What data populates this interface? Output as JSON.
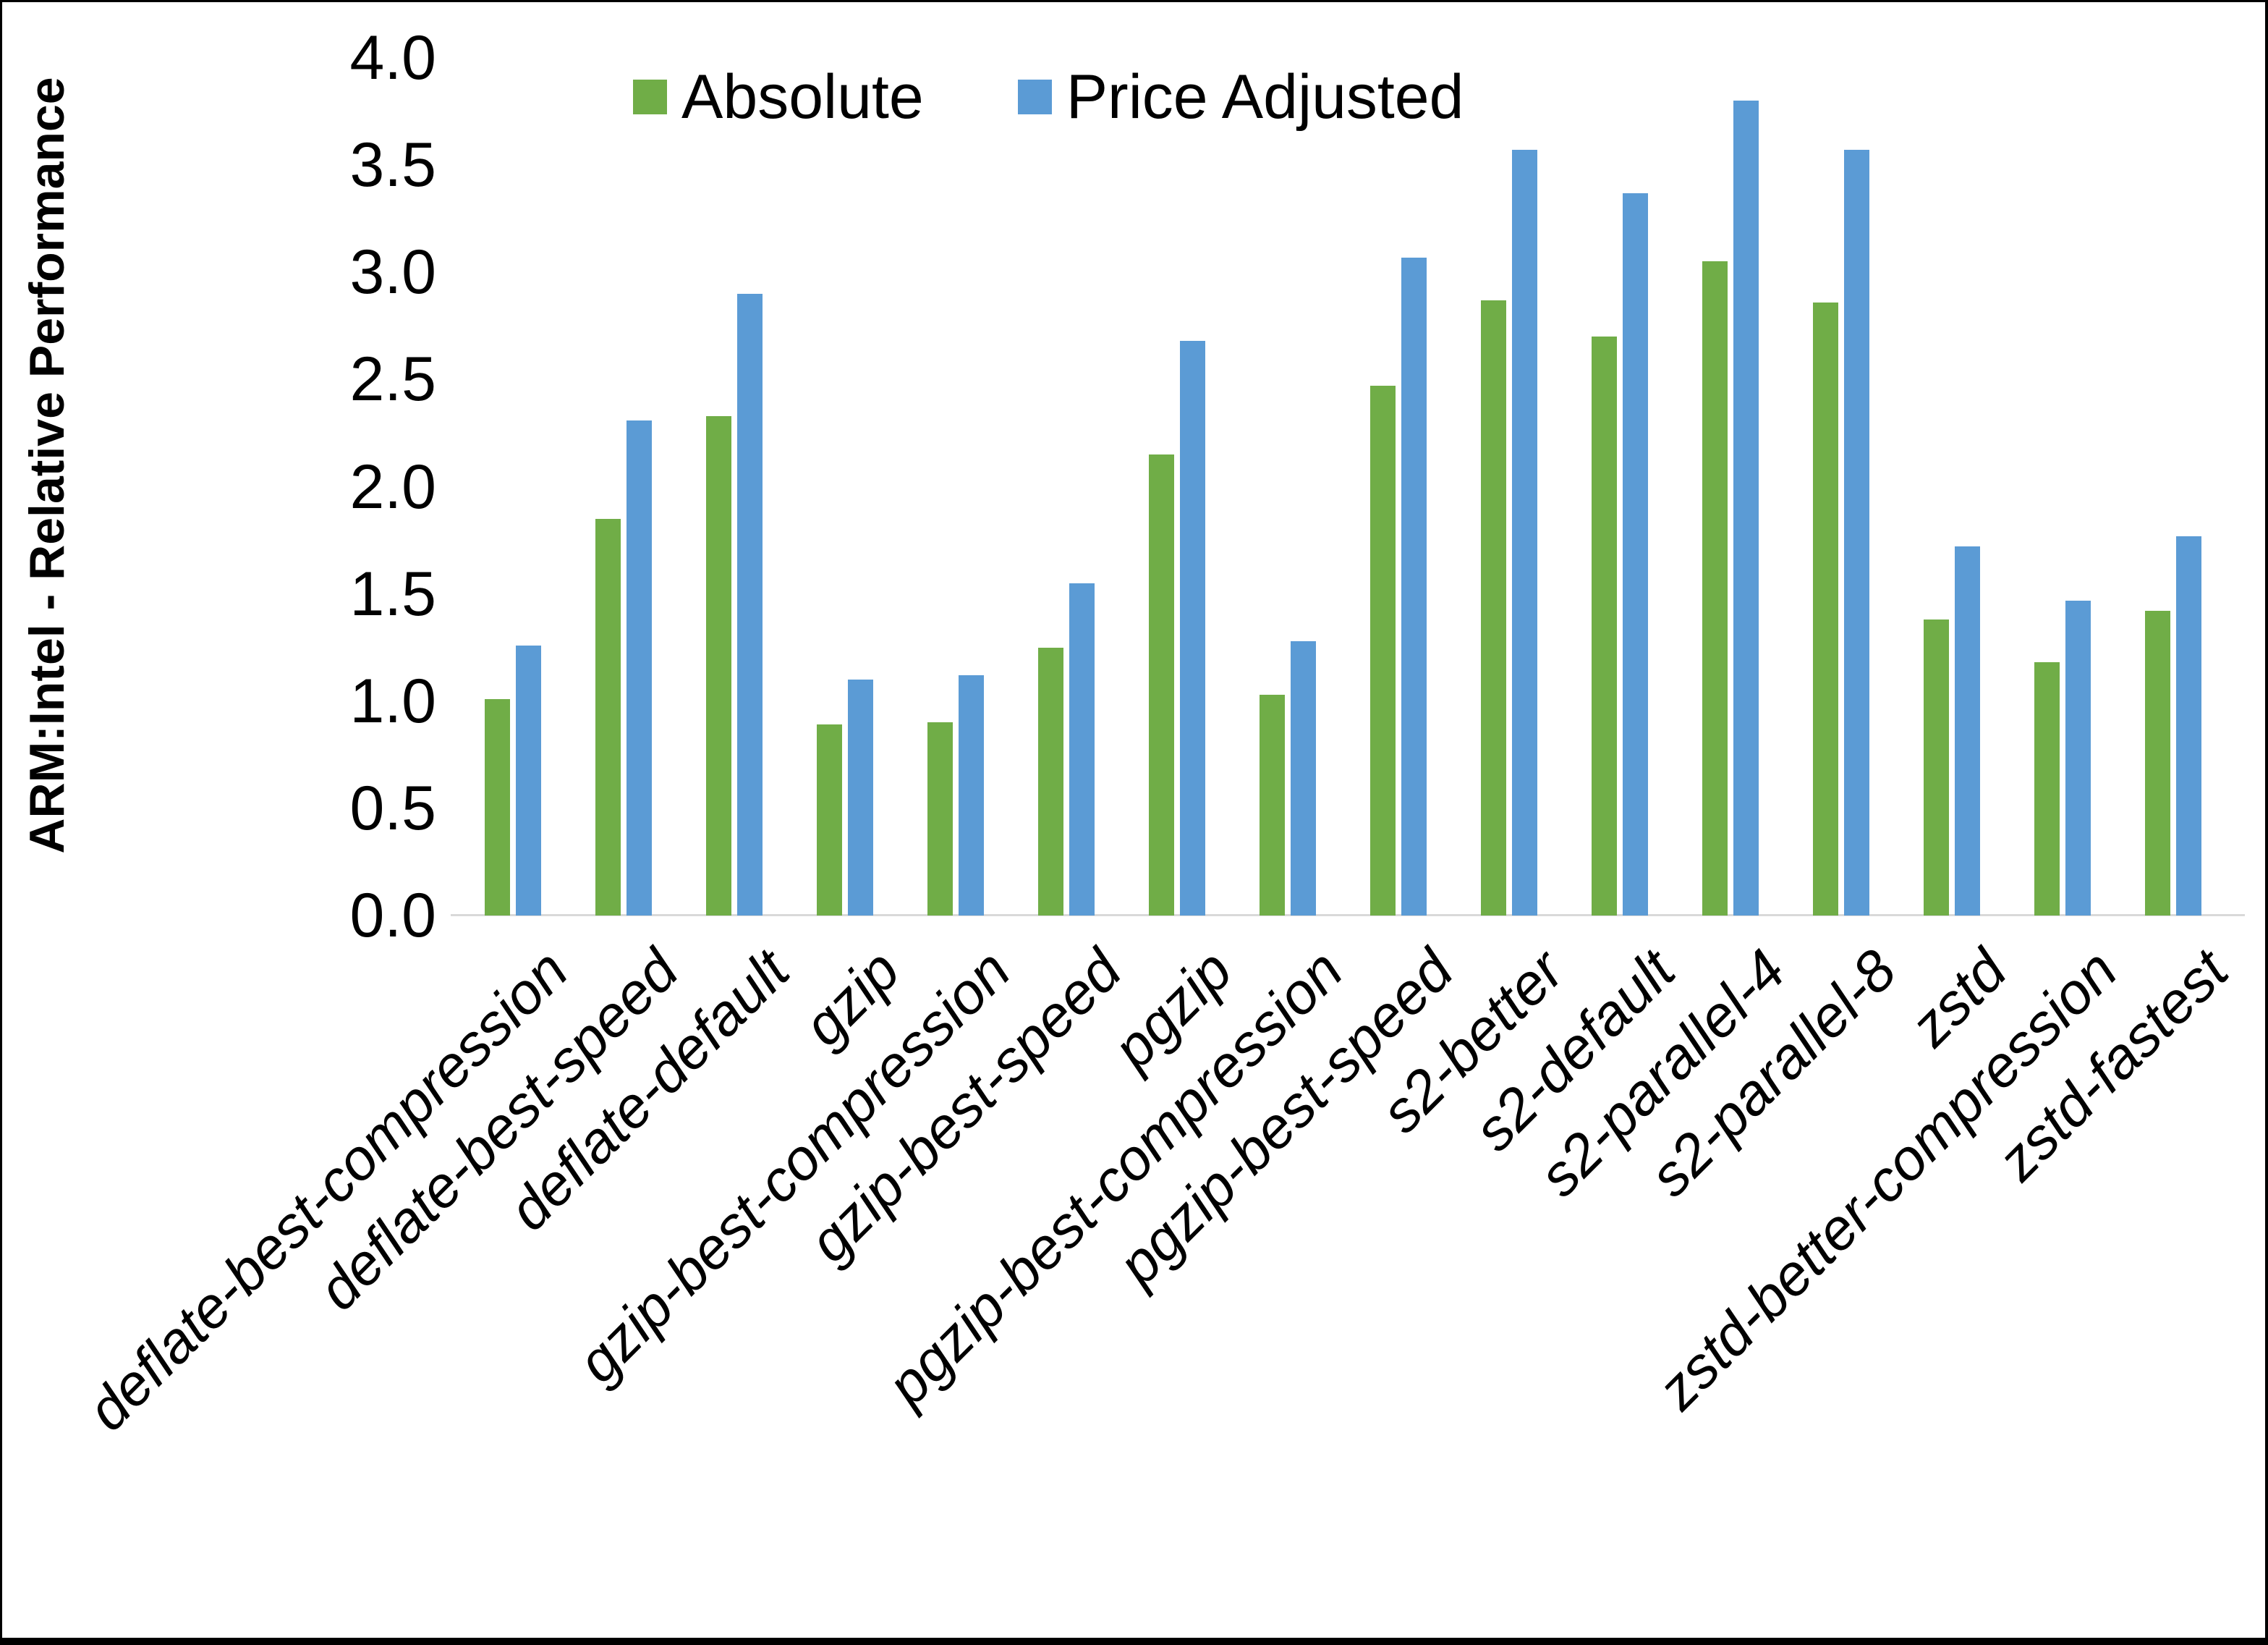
{
  "chart_data": {
    "type": "bar",
    "title": "",
    "ylabel": "ARM:Intel - Relative Performance",
    "xlabel": "",
    "ylim": [
      0.0,
      4.0
    ],
    "yticks": [
      0.0,
      0.5,
      1.0,
      1.5,
      2.0,
      2.5,
      3.0,
      3.5,
      4.0
    ],
    "grid": false,
    "legend_position": "top-center",
    "categories": [
      "deflate-best-compression",
      "deflate-best-speed",
      "deflate-default",
      "gzip",
      "gzip-best-compression",
      "gzip-best-speed",
      "pgzip",
      "pgzip-best-compression",
      "pgzip-best-speed",
      "s2-better",
      "s2-default",
      "s2-parallel-4",
      "s2-parallel-8",
      "zstd",
      "zstd-better-compression",
      "zstd-fastest"
    ],
    "series": [
      {
        "name": "Absolute",
        "color": "#70AD47",
        "values": [
          1.01,
          1.85,
          2.33,
          0.89,
          0.9,
          1.25,
          2.15,
          1.03,
          2.47,
          2.87,
          2.7,
          3.05,
          2.86,
          1.38,
          1.18,
          1.42
        ]
      },
      {
        "name": "Price Adjusted",
        "color": "#5B9BD5",
        "values": [
          1.26,
          2.31,
          2.9,
          1.1,
          1.12,
          1.55,
          2.68,
          1.28,
          3.07,
          3.57,
          3.37,
          3.8,
          3.57,
          1.72,
          1.47,
          1.77
        ]
      }
    ]
  }
}
